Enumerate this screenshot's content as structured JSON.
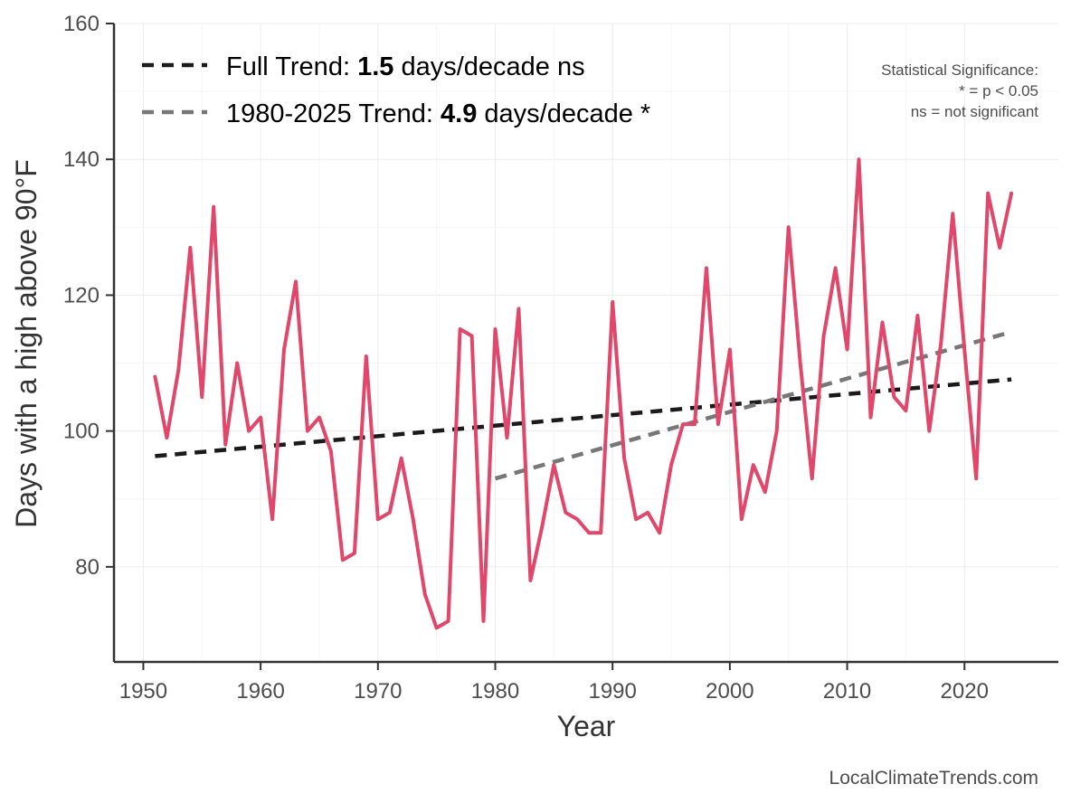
{
  "chart_data": {
    "type": "line",
    "xlabel": "Year",
    "ylabel": "Days with a high above 90°F",
    "xlim": [
      1947.5,
      2028
    ],
    "ylim": [
      66,
      160
    ],
    "xticks": [
      1950,
      1960,
      1970,
      1980,
      1990,
      2000,
      2010,
      2020
    ],
    "yticks": [
      80,
      100,
      120,
      140,
      160
    ],
    "grid": true,
    "legend_position": "top-left",
    "series": [
      {
        "name": "",
        "color": "#e0476a",
        "x": [
          1951,
          1952,
          1953,
          1954,
          1955,
          1956,
          1957,
          1958,
          1959,
          1960,
          1961,
          1962,
          1963,
          1964,
          1965,
          1966,
          1967,
          1968,
          1969,
          1970,
          1971,
          1972,
          1973,
          1974,
          1975,
          1976,
          1977,
          1978,
          1979,
          1980,
          1981,
          1982,
          1983,
          1984,
          1985,
          1986,
          1987,
          1988,
          1989,
          1990,
          1991,
          1992,
          1993,
          1994,
          1995,
          1996,
          1997,
          1998,
          1999,
          2000,
          2001,
          2002,
          2003,
          2004,
          2005,
          2006,
          2007,
          2008,
          2009,
          2010,
          2011,
          2012,
          2013,
          2014,
          2015,
          2016,
          2017,
          2018,
          2019,
          2020,
          2021,
          2022,
          2023,
          2024
        ],
        "values": [
          108,
          99,
          109,
          127,
          105,
          133,
          98,
          110,
          100,
          102,
          87,
          112,
          122,
          100,
          102,
          97,
          81,
          82,
          111,
          87,
          88,
          96,
          87,
          76,
          71,
          72,
          115,
          114,
          72,
          115,
          99,
          118,
          78,
          86,
          95,
          88,
          87,
          85,
          85,
          119,
          96,
          87,
          88,
          85,
          95,
          101,
          101,
          124,
          101,
          112,
          87,
          95,
          91,
          100,
          130,
          110,
          93,
          114,
          124,
          112,
          140,
          102,
          116,
          105,
          103,
          117,
          100,
          113,
          132,
          112,
          93,
          135,
          127,
          135
        ]
      }
    ],
    "trends": [
      {
        "label": "Full Trend:",
        "value": "1.5",
        "suffix": "days/decade ns",
        "color": "#1a1a1a",
        "x": [
          1951,
          2024
        ],
        "y": [
          96.3,
          107.6
        ]
      },
      {
        "label": "1980-2025 Trend:",
        "value": "4.9",
        "suffix": "days/decade *",
        "color": "#777777",
        "x": [
          1980,
          2024
        ],
        "y": [
          93.0,
          114.6
        ]
      }
    ],
    "annotation": [
      "Statistical Significance:",
      "* = p < 0.05",
      "ns = not significant"
    ],
    "credit": "LocalClimateTrends.com"
  }
}
